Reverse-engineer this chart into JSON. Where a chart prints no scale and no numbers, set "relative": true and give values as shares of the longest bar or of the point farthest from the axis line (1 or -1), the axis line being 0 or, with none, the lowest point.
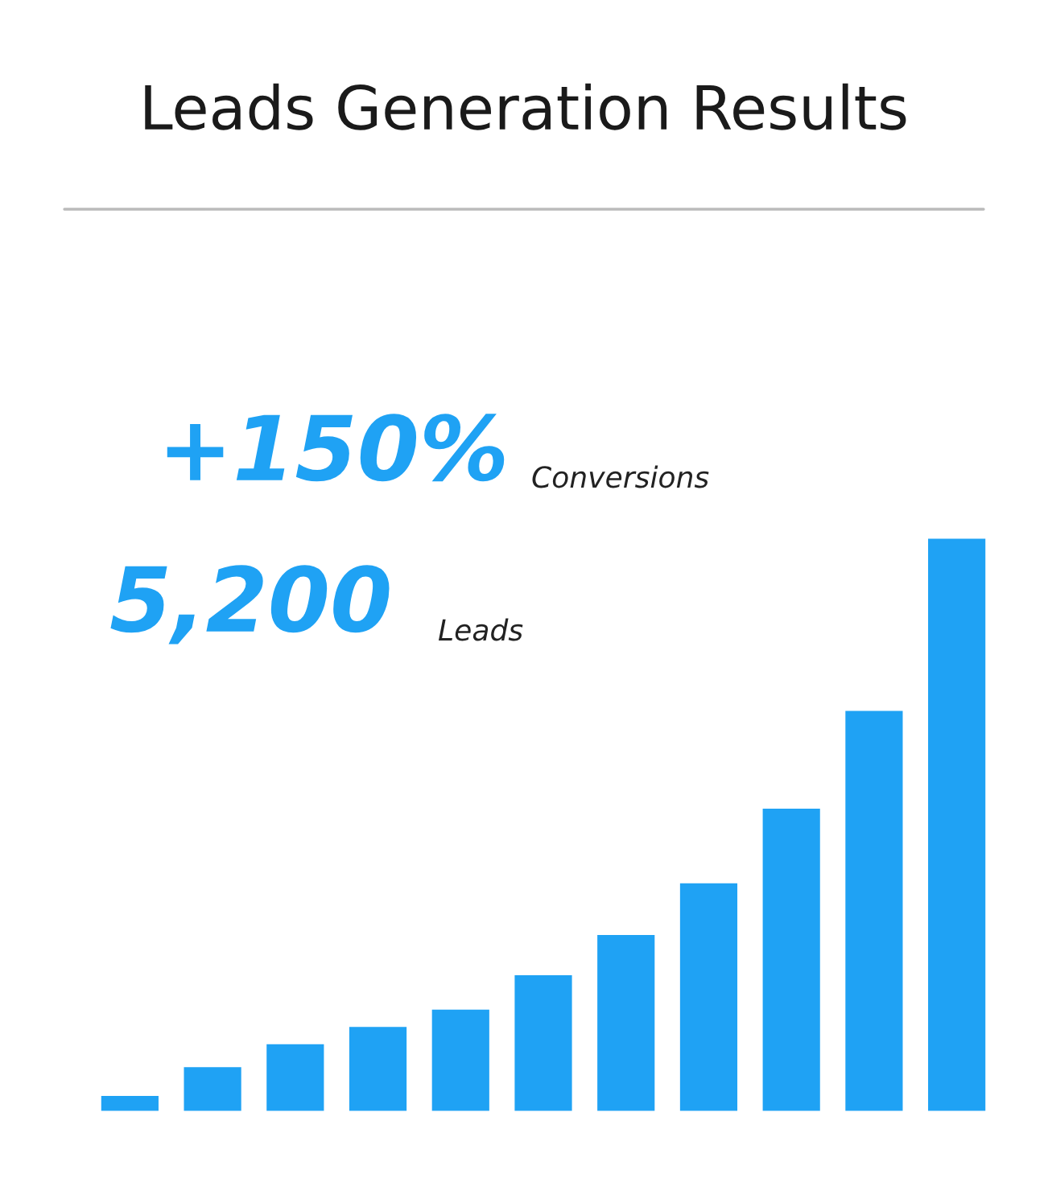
{
  "chart_data": {
    "type": "bar",
    "title": "Leads Generation Results",
    "categories": [
      null,
      null,
      null,
      null,
      null,
      null,
      null,
      null,
      null,
      null,
      null
    ],
    "values": [
      0.03,
      0.08,
      0.12,
      0.15,
      0.18,
      0.24,
      0.31,
      0.4,
      0.53,
      0.7,
      1.0
    ],
    "color": "#1fa2f4",
    "relative": true,
    "grid": false,
    "legend": false,
    "annotations": [
      "+150%",
      "Conversions",
      "5,200",
      "Leads"
    ]
  }
}
